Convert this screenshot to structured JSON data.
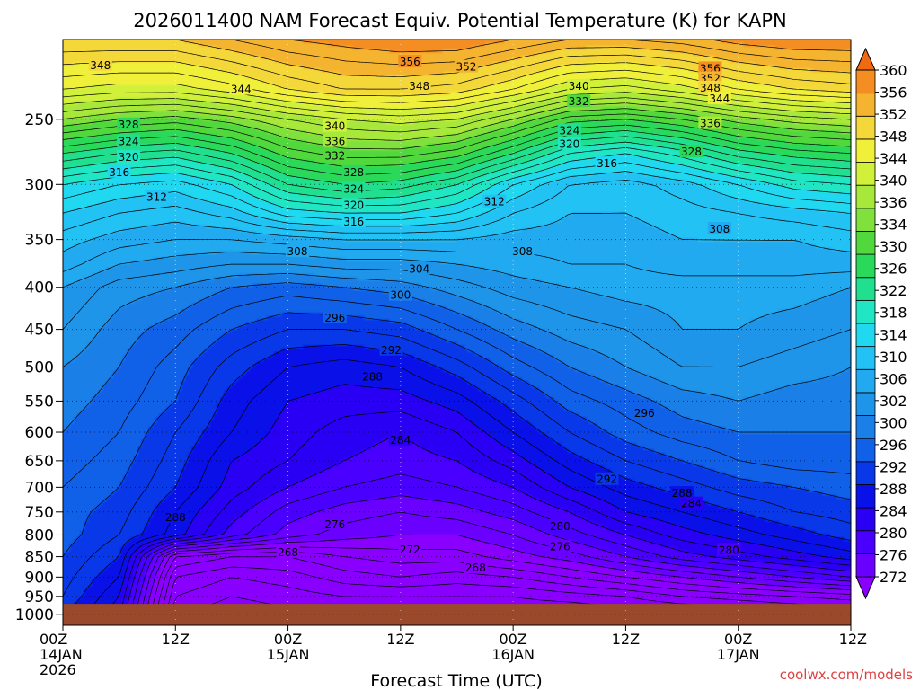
{
  "chart_data": {
    "type": "contour",
    "title": "2026011400 NAM Forecast Equiv. Potential Temperature (K) for KAPN",
    "xlabel": "Forecast Time (UTC)",
    "credit": "coolwx.com/models",
    "x_ticks": [
      {
        "hour": 0,
        "line1": "00Z",
        "line2": "14JAN",
        "line3": "2026"
      },
      {
        "hour": 12,
        "line1": "12Z",
        "line2": "",
        "line3": ""
      },
      {
        "hour": 24,
        "line1": "00Z",
        "line2": "15JAN",
        "line3": ""
      },
      {
        "hour": 36,
        "line1": "12Z",
        "line2": "",
        "line3": ""
      },
      {
        "hour": 48,
        "line1": "00Z",
        "line2": "16JAN",
        "line3": ""
      },
      {
        "hour": 60,
        "line1": "12Z",
        "line2": "",
        "line3": ""
      },
      {
        "hour": 72,
        "line1": "00Z",
        "line2": "17JAN",
        "line3": ""
      },
      {
        "hour": 84,
        "line1": "12Z",
        "line2": "",
        "line3": ""
      }
    ],
    "x_range_hours": [
      0,
      84
    ],
    "y_ticks": [
      250,
      300,
      350,
      400,
      450,
      500,
      550,
      600,
      650,
      700,
      750,
      800,
      850,
      900,
      950,
      1000
    ],
    "y_tick_labels": [
      "250",
      "300",
      "350",
      "400",
      "450",
      "500",
      "550",
      "600",
      "650",
      "700",
      "750",
      "800",
      "850",
      "900",
      "950",
      "1000"
    ],
    "y_range_hPa": [
      1030,
      200
    ],
    "y_scale": "log-pressure",
    "grid": "dotted",
    "surface_pressure_hPa": 970,
    "colorbar": {
      "position": "right",
      "levels": [
        272,
        276,
        280,
        284,
        288,
        292,
        296,
        300,
        302,
        306,
        310,
        314,
        318,
        322,
        326,
        330,
        334,
        336,
        340,
        344,
        348,
        352,
        356,
        360
      ],
      "labels": [
        "272",
        "276",
        "280",
        "284",
        "288",
        "292",
        "296",
        "300",
        "302",
        "306",
        "310",
        "314",
        "318",
        "322",
        "326",
        "330",
        "334",
        "336",
        "340",
        "344",
        "348",
        "352",
        "356",
        "360"
      ],
      "colors": [
        "#8a00ff",
        "#6a00ff",
        "#4a00ff",
        "#2a00f5",
        "#0a10e8",
        "#0838e8",
        "#1060e8",
        "#1a80e8",
        "#1e95e8",
        "#22aaf0",
        "#22c2f4",
        "#20d8f0",
        "#20e6c4",
        "#20e090",
        "#2ad85a",
        "#50d83c",
        "#80e03c",
        "#a8e83a",
        "#d0f03a",
        "#f0f03a",
        "#f4d83a",
        "#f4b430",
        "#f48e22",
        "#f06a12"
      ]
    },
    "levels_hPa": [
      200,
      230,
      250,
      275,
      300,
      325,
      350,
      375,
      400,
      450,
      500,
      550,
      600,
      650,
      700,
      750,
      800,
      850,
      900,
      950,
      980
    ],
    "times_hours": [
      0,
      6,
      12,
      18,
      24,
      30,
      36,
      42,
      48,
      54,
      60,
      66,
      72,
      78,
      84
    ],
    "theta_e_K": [
      [
        352,
        352,
        352,
        354,
        356,
        357,
        358,
        358,
        356,
        354,
        354,
        355,
        357,
        358,
        358
      ],
      [
        344,
        343,
        343,
        345,
        348,
        350,
        350,
        349,
        346,
        342,
        341,
        343,
        346,
        348,
        349
      ],
      [
        336,
        334,
        333,
        335,
        338,
        340,
        341,
        340,
        336,
        331,
        330,
        332,
        335,
        337,
        338
      ],
      [
        326,
        324,
        323,
        326,
        331,
        333,
        333,
        331,
        326,
        320,
        318,
        321,
        325,
        327,
        328
      ],
      [
        318,
        316,
        315,
        318,
        324,
        326,
        325,
        322,
        316,
        312,
        311,
        313,
        316,
        319,
        320
      ],
      [
        314,
        312,
        311,
        313,
        317,
        318,
        318,
        316,
        312,
        310,
        310,
        311,
        312,
        313,
        314
      ],
      [
        311,
        309,
        308,
        308,
        309,
        310,
        310,
        310,
        309,
        309,
        309,
        310,
        310,
        310,
        311
      ],
      [
        309,
        306,
        305,
        304,
        304,
        305,
        305,
        306,
        307,
        308,
        308,
        309,
        309,
        309,
        309
      ],
      [
        306,
        303,
        302,
        300,
        299,
        300,
        301,
        303,
        305,
        306,
        307,
        307,
        307,
        307,
        306
      ],
      [
        304,
        301,
        299,
        296,
        294,
        294,
        295,
        298,
        301,
        303,
        304,
        306,
        306,
        305,
        304
      ],
      [
        302,
        300,
        297,
        293,
        290,
        289,
        290,
        293,
        297,
        300,
        302,
        304,
        304,
        303,
        302
      ],
      [
        301,
        299,
        296,
        291,
        288,
        287,
        287,
        289,
        293,
        297,
        299,
        301,
        302,
        301,
        301
      ],
      [
        300,
        298,
        294,
        290,
        287,
        285,
        284,
        286,
        290,
        294,
        297,
        299,
        300,
        300,
        300
      ],
      [
        299,
        297,
        293,
        288,
        286,
        284,
        283,
        284,
        287,
        291,
        294,
        296,
        298,
        299,
        299
      ],
      [
        298,
        296,
        292,
        287,
        284,
        282,
        281,
        282,
        284,
        288,
        291,
        293,
        295,
        296,
        297
      ],
      [
        297,
        295,
        290,
        285,
        281,
        279,
        278,
        279,
        281,
        284,
        288,
        290,
        292,
        294,
        295
      ],
      [
        297,
        294,
        289,
        283,
        279,
        277,
        276,
        276,
        278,
        281,
        284,
        287,
        289,
        291,
        293
      ],
      [
        296,
        292,
        272,
        270,
        270,
        272,
        273,
        273,
        275,
        277,
        280,
        283,
        285,
        287,
        289
      ],
      [
        295,
        290,
        268,
        266,
        267,
        269,
        270,
        269,
        270,
        272,
        274,
        276,
        278,
        280,
        282
      ],
      [
        294,
        288,
        266,
        264,
        265,
        266,
        266,
        266,
        266,
        267,
        268,
        270,
        271,
        272,
        273
      ],
      [
        293,
        287,
        265,
        263,
        264,
        265,
        265,
        265,
        265,
        265,
        266,
        267,
        268,
        269,
        270
      ]
    ],
    "contour_labels": [
      {
        "text": "348",
        "hour": 4,
        "p": 215
      },
      {
        "text": "356",
        "hour": 37,
        "p": 213
      },
      {
        "text": "352",
        "hour": 43,
        "p": 216
      },
      {
        "text": "356",
        "hour": 69,
        "p": 217
      },
      {
        "text": "352",
        "hour": 69,
        "p": 223
      },
      {
        "text": "348",
        "hour": 69,
        "p": 229
      },
      {
        "text": "344",
        "hour": 70,
        "p": 236
      },
      {
        "text": "344",
        "hour": 19,
        "p": 230
      },
      {
        "text": "348",
        "hour": 38,
        "p": 228
      },
      {
        "text": "340",
        "hour": 55,
        "p": 228
      },
      {
        "text": "332",
        "hour": 55,
        "p": 238
      },
      {
        "text": "336",
        "hour": 69,
        "p": 253
      },
      {
        "text": "328",
        "hour": 7,
        "p": 254
      },
      {
        "text": "340",
        "hour": 29,
        "p": 255
      },
      {
        "text": "324",
        "hour": 54,
        "p": 258
      },
      {
        "text": "324",
        "hour": 7,
        "p": 266
      },
      {
        "text": "336",
        "hour": 29,
        "p": 266
      },
      {
        "text": "320",
        "hour": 54,
        "p": 268
      },
      {
        "text": "328",
        "hour": 67,
        "p": 274
      },
      {
        "text": "320",
        "hour": 7,
        "p": 278
      },
      {
        "text": "332",
        "hour": 29,
        "p": 277
      },
      {
        "text": "316",
        "hour": 58,
        "p": 283
      },
      {
        "text": "316",
        "hour": 6,
        "p": 290
      },
      {
        "text": "328",
        "hour": 31,
        "p": 290
      },
      {
        "text": "324",
        "hour": 31,
        "p": 304
      },
      {
        "text": "312",
        "hour": 10,
        "p": 311
      },
      {
        "text": "312",
        "hour": 46,
        "p": 315
      },
      {
        "text": "320",
        "hour": 31,
        "p": 318
      },
      {
        "text": "316",
        "hour": 31,
        "p": 333
      },
      {
        "text": "308",
        "hour": 70,
        "p": 340
      },
      {
        "text": "308",
        "hour": 25,
        "p": 362
      },
      {
        "text": "308",
        "hour": 49,
        "p": 362
      },
      {
        "text": "304",
        "hour": 38,
        "p": 380
      },
      {
        "text": "300",
        "hour": 36,
        "p": 409
      },
      {
        "text": "296",
        "hour": 29,
        "p": 436
      },
      {
        "text": "292",
        "hour": 35,
        "p": 477
      },
      {
        "text": "288",
        "hour": 33,
        "p": 514
      },
      {
        "text": "296",
        "hour": 62,
        "p": 569
      },
      {
        "text": "284",
        "hour": 36,
        "p": 614
      },
      {
        "text": "292",
        "hour": 58,
        "p": 685
      },
      {
        "text": "288",
        "hour": 66,
        "p": 712
      },
      {
        "text": "284",
        "hour": 67,
        "p": 733
      },
      {
        "text": "288",
        "hour": 12,
        "p": 762
      },
      {
        "text": "276",
        "hour": 29,
        "p": 777
      },
      {
        "text": "280",
        "hour": 53,
        "p": 781
      },
      {
        "text": "276",
        "hour": 53,
        "p": 827
      },
      {
        "text": "280",
        "hour": 71,
        "p": 835
      },
      {
        "text": "272",
        "hour": 37,
        "p": 834
      },
      {
        "text": "268",
        "hour": 24,
        "p": 840
      },
      {
        "text": "268",
        "hour": 44,
        "p": 877
      }
    ]
  }
}
